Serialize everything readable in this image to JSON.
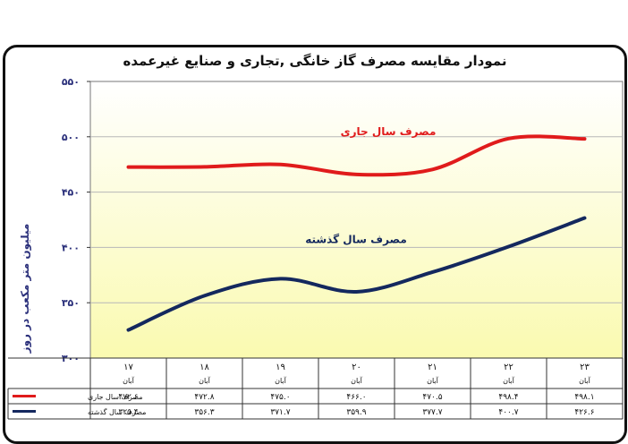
{
  "chart_data": {
    "type": "line",
    "title": "نمودار مقایسه مصرف گاز خانگی ,تجاری و صنایع غیرعمده",
    "ylabel": "میلیون متر مکعب در روز",
    "ylim": [
      300,
      550
    ],
    "yticks": [
      "۵۵۰",
      "۵۰۰",
      "۴۵۰",
      "۴۰۰",
      "۳۵۰",
      "۳۰۰"
    ],
    "ytick_values": [
      550,
      500,
      450,
      400,
      350,
      300
    ],
    "categories": [
      "۱۷",
      "۱۸",
      "۱۹",
      "۲۰",
      "۲۱",
      "۲۲",
      "۲۳"
    ],
    "category_sub": "آبان",
    "grid": true,
    "series": [
      {
        "name": "مصرف سال جاری",
        "color": "#e01b1b",
        "values": [
          472.6,
          472.8,
          475.0,
          466.0,
          470.5,
          498.4,
          498.1
        ],
        "table_values": [
          "۴۷۲.۶",
          "۴۷۲.۸",
          "۴۷۵.۰",
          "۴۶۶.۰",
          "۴۷۰.۵",
          "۴۹۸.۴",
          "۴۹۸.۱"
        ],
        "inline_label": "مصرف سال جاری"
      },
      {
        "name": "مصرف سال گذشته",
        "color": "#14285e",
        "values": [
          325.4,
          356.3,
          371.7,
          359.9,
          377.7,
          400.7,
          426.6
        ],
        "table_values": [
          "۳۲۵.۴",
          "۳۵۶.۳",
          "۳۷۱.۷",
          "۳۵۹.۹",
          "۳۷۷.۷",
          "۴۰۰.۷",
          "۴۲۶.۶"
        ],
        "inline_label": "مصرف سال گذشته"
      }
    ],
    "legend_placement": "data-table-left"
  },
  "colors": {
    "plot_gradient_top": "#ffffff",
    "plot_gradient_bottom": "#fafab0",
    "gridline": "#b8b8b8"
  }
}
